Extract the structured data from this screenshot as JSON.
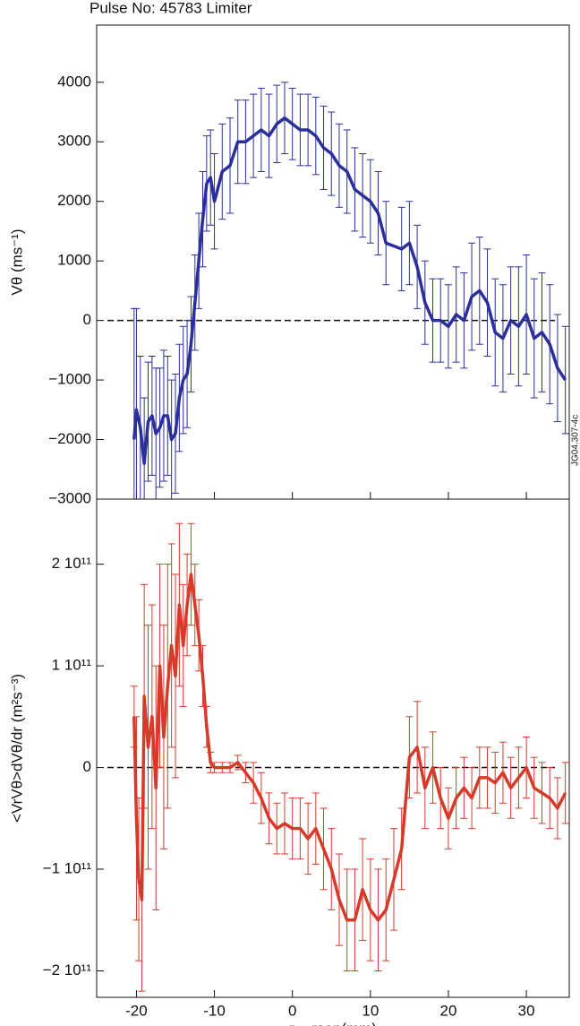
{
  "title": "Pulse No: 45783 Limiter",
  "code_label": "JG04.307-4c",
  "chart_data": [
    {
      "type": "errorbar-line",
      "ylabel": "Vθ (ms⁻¹)",
      "xlim": [
        -25.1,
        35.5
      ],
      "xticks": [
        -20,
        -10,
        0,
        10,
        20,
        30
      ],
      "ylim": [
        -3000,
        4960
      ],
      "yticks": [
        {
          "value": -3000,
          "label": "−3000"
        },
        {
          "value": -2000,
          "label": "−2000"
        },
        {
          "value": -1000,
          "label": "−1000"
        },
        0,
        1000,
        2000,
        3000,
        4000
      ],
      "reference_line": 0,
      "series": [
        {
          "color": "#2b2f9a",
          "x": [
            -20.3,
            -20,
            -19.5,
            -19,
            -18.5,
            -18,
            -17.5,
            -17,
            -16.5,
            -16,
            -15.5,
            -15,
            -14.5,
            -14,
            -13.5,
            -13,
            -12.5,
            -12,
            -11.5,
            -11,
            -10.5,
            -10,
            -9,
            -8,
            -7,
            -6,
            -5,
            -4,
            -3,
            -2,
            -1,
            0,
            1,
            2,
            3,
            4,
            5,
            6,
            7,
            8,
            9,
            10,
            11,
            12,
            14,
            15,
            16,
            17,
            18,
            19,
            20,
            21,
            22,
            23,
            24,
            25,
            26,
            27,
            28,
            29,
            30,
            31,
            32,
            33,
            34,
            35
          ],
          "values": [
            -2000,
            -1500,
            -1800,
            -2400,
            -1700,
            -1600,
            -1900,
            -1800,
            -1600,
            -1600,
            -2000,
            -1900,
            -1300,
            -1000,
            -900,
            -400,
            300,
            1000,
            1700,
            2300,
            2400,
            2000,
            2500,
            2600,
            3000,
            3000,
            3100,
            3200,
            3100,
            3300,
            3400,
            3300,
            3200,
            3200,
            3100,
            2900,
            2800,
            2600,
            2500,
            2200,
            2100,
            2000,
            1800,
            1300,
            1200,
            1300,
            900,
            300,
            0,
            0,
            -100,
            100,
            0,
            400,
            500,
            300,
            -200,
            -300,
            0,
            -100,
            100,
            -300,
            -200,
            -400,
            -800,
            -1000
          ],
          "errors": [
            2200,
            1700,
            1200,
            1100,
            1000,
            1000,
            1100,
            1000,
            1100,
            1000,
            1000,
            1000,
            900,
            900,
            900,
            800,
            800,
            800,
            800,
            800,
            800,
            800,
            800,
            800,
            700,
            700,
            700,
            700,
            700,
            650,
            600,
            600,
            600,
            600,
            650,
            700,
            700,
            700,
            700,
            700,
            700,
            700,
            700,
            700,
            700,
            700,
            700,
            700,
            700,
            700,
            700,
            800,
            800,
            900,
            900,
            900,
            900,
            900,
            900,
            1000,
            1000,
            1000,
            1000,
            1000,
            900,
            900
          ]
        }
      ]
    },
    {
      "type": "errorbar-line",
      "ylabel": "<VrVθ>dVθ/dr (m²s⁻³)",
      "xlabel": "r − rsep(mm)",
      "xlim": [
        -25.1,
        35.5
      ],
      "xticks": [
        -20,
        -10,
        0,
        10,
        20,
        30
      ],
      "ylim": [
        -226000000000.0,
        264000000000.0
      ],
      "yticks": [
        {
          "value": -200000000000.0,
          "label": "−2 10¹¹"
        },
        {
          "value": -100000000000.0,
          "label": "−1 10¹¹"
        },
        0,
        {
          "value": 100000000000.0,
          "label": "1 10¹¹"
        },
        {
          "value": 200000000000.0,
          "label": "2 10¹¹"
        }
      ],
      "reference_line": 0,
      "series": [
        {
          "color": "#d63a2a",
          "x": [
            -20.3,
            -20,
            -19.7,
            -19.3,
            -19,
            -18.5,
            -18,
            -17.5,
            -17,
            -16.5,
            -16,
            -15.5,
            -15,
            -14.5,
            -14,
            -13.5,
            -13,
            -12.5,
            -12,
            -11.5,
            -11,
            -10.5,
            -10,
            -9,
            -8,
            -7,
            -6,
            -5,
            -4,
            -3,
            -2,
            -1,
            0,
            1,
            2,
            3,
            4,
            5,
            6,
            7,
            8,
            9,
            10,
            11,
            12,
            13,
            14,
            15,
            16,
            17,
            18,
            19,
            20,
            21,
            22,
            23,
            24,
            25,
            26,
            27,
            28,
            29,
            30,
            31,
            32,
            33,
            34,
            35
          ],
          "values": [
            50000000000.0,
            -50000000000.0,
            -110000000000.0,
            -130000000000.0,
            70000000000.0,
            20000000000.0,
            50000000000.0,
            -20000000000.0,
            100000000000.0,
            30000000000.0,
            80000000000.0,
            120000000000.0,
            90000000000.0,
            160000000000.0,
            120000000000.0,
            160000000000.0,
            190000000000.0,
            160000000000.0,
            130000000000.0,
            90000000000.0,
            40000000000.0,
            5000000000.0,
            0,
            0,
            0,
            5000000000.0,
            -5000000000.0,
            -15000000000.0,
            -30000000000.0,
            -50000000000.0,
            -60000000000.0,
            -55000000000.0,
            -60000000000.0,
            -60000000000.0,
            -70000000000.0,
            -60000000000.0,
            -80000000000.0,
            -100000000000.0,
            -130000000000.0,
            -150000000000.0,
            -150000000000.0,
            -120000000000.0,
            -140000000000.0,
            -150000000000.0,
            -140000000000.0,
            -110000000000.0,
            -80000000000.0,
            10000000000.0,
            20000000000.0,
            -20000000000.0,
            0,
            -30000000000.0,
            -50000000000.0,
            -30000000000.0,
            -20000000000.0,
            -30000000000.0,
            -10000000000.0,
            -10000000000.0,
            -15000000000.0,
            -5000000000.0,
            -20000000000.0,
            -10000000000.0,
            0,
            -20000000000.0,
            -25000000000.0,
            -30000000000.0,
            -40000000000.0,
            -25000000000.0
          ],
          "errors": [
            30000000000.0,
            100000000000.0,
            80000000000.0,
            90000000000.0,
            110000000000.0,
            120000000000.0,
            110000000000.0,
            120000000000.0,
            100000000000.0,
            110000000000.0,
            120000000000.0,
            100000000000.0,
            100000000000.0,
            80000000000.0,
            60000000000.0,
            50000000000.0,
            50000000000.0,
            40000000000.0,
            35000000000.0,
            30000000000.0,
            20000000000.0,
            10000000000.0,
            5000000000.0,
            5000000000.0,
            5000000000.0,
            7000000000.0,
            10000000000.0,
            20000000000.0,
            25000000000.0,
            25000000000.0,
            25000000000.0,
            30000000000.0,
            30000000000.0,
            30000000000.0,
            35000000000.0,
            35000000000.0,
            40000000000.0,
            40000000000.0,
            45000000000.0,
            50000000000.0,
            50000000000.0,
            50000000000.0,
            50000000000.0,
            50000000000.0,
            50000000000.0,
            50000000000.0,
            40000000000.0,
            40000000000.0,
            45000000000.0,
            40000000000.0,
            35000000000.0,
            30000000000.0,
            30000000000.0,
            30000000000.0,
            30000000000.0,
            30000000000.0,
            30000000000.0,
            30000000000.0,
            30000000000.0,
            30000000000.0,
            30000000000.0,
            30000000000.0,
            30000000000.0,
            30000000000.0,
            30000000000.0,
            30000000000.0,
            30000000000.0,
            30000000000.0
          ]
        }
      ]
    }
  ]
}
